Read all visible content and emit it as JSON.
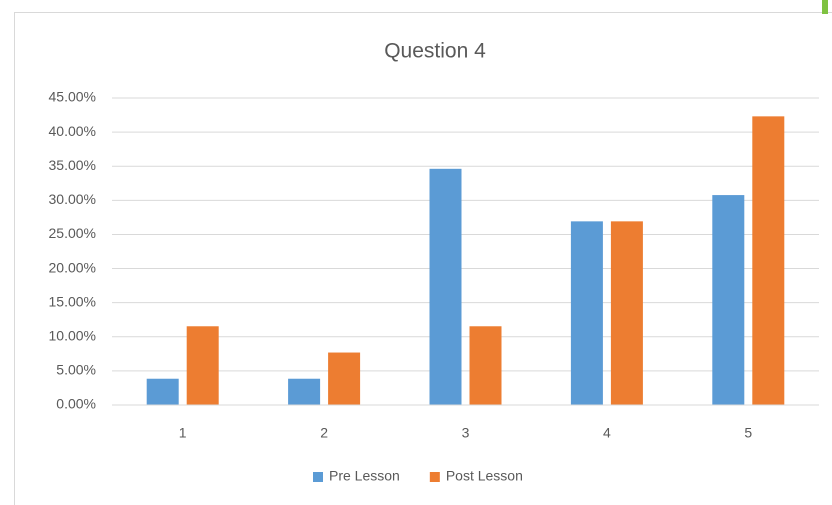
{
  "chart_data": {
    "type": "bar",
    "title": "Question 4",
    "categories": [
      "1",
      "2",
      "3",
      "4",
      "5"
    ],
    "series": [
      {
        "name": "Pre Lesson",
        "color": "#5b9bd5",
        "values": [
          3.85,
          3.85,
          34.62,
          26.92,
          30.77
        ]
      },
      {
        "name": "Post Lesson",
        "color": "#ed7d31",
        "values": [
          11.54,
          7.69,
          11.54,
          26.92,
          42.31
        ]
      }
    ],
    "ylim": [
      0,
      45
    ],
    "yticks": [
      {
        "value": 0,
        "label": "0.00%"
      },
      {
        "value": 5,
        "label": "5.00%"
      },
      {
        "value": 10,
        "label": "10.00%"
      },
      {
        "value": 15,
        "label": "15.00%"
      },
      {
        "value": 20,
        "label": "20.00%"
      },
      {
        "value": 25,
        "label": "25.00%"
      },
      {
        "value": 30,
        "label": "30.00%"
      },
      {
        "value": 35,
        "label": "35.00%"
      },
      {
        "value": 40,
        "label": "40.00%"
      },
      {
        "value": 45,
        "label": "45.00%"
      }
    ],
    "grid": true,
    "legend": "bottom"
  }
}
